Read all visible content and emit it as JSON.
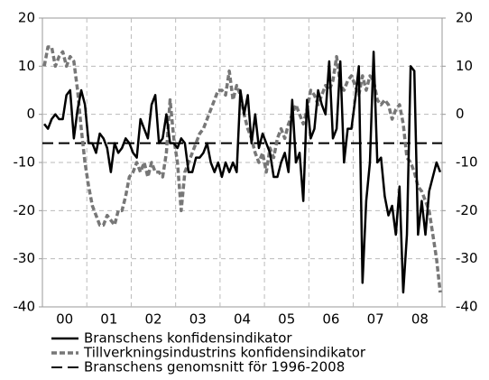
{
  "chart_data": {
    "type": "line",
    "categories": [
      null,
      null,
      null,
      null,
      null,
      null,
      "00",
      null,
      null,
      null,
      null,
      null,
      null,
      null,
      null,
      null,
      null,
      null,
      "01",
      null,
      null,
      null,
      null,
      null,
      null,
      null,
      null,
      null,
      null,
      null,
      "02",
      null,
      null,
      null,
      null,
      null,
      null,
      null,
      null,
      null,
      null,
      null,
      "03",
      null,
      null,
      null,
      null,
      null,
      null,
      null,
      null,
      null,
      null,
      null,
      "04",
      null,
      null,
      null,
      null,
      null,
      null,
      null,
      null,
      null,
      null,
      null,
      "05",
      null,
      null,
      null,
      null,
      null,
      null,
      null,
      null,
      null,
      null,
      null,
      "06",
      null,
      null,
      null,
      null,
      null,
      null,
      null,
      null,
      null,
      null,
      null,
      "07",
      null,
      null,
      null,
      null,
      null,
      null,
      null,
      null,
      null,
      null,
      null,
      "08",
      null,
      null,
      null,
      null,
      null
    ],
    "series": [
      {
        "name": "Branschens konfidensindikator",
        "color": "#000000",
        "style": "solid",
        "values": [
          -2,
          -3,
          -1,
          0,
          -1,
          -1,
          4,
          5,
          -5,
          1,
          5,
          2,
          -6,
          -6,
          -8,
          -4,
          -5,
          -7,
          -12,
          -6,
          -8,
          -7,
          -5,
          -6,
          -8,
          -9,
          -1,
          -3,
          -5,
          2,
          4,
          -6,
          -5,
          0,
          -6,
          -6,
          -7,
          -5,
          -6,
          -12,
          -12,
          -9,
          -9,
          -8,
          -6,
          -10,
          -12,
          -10,
          -13,
          -10,
          -12,
          -10,
          -12,
          5,
          0,
          4,
          -6,
          0,
          -7,
          -4,
          -6,
          -8,
          -13,
          -13,
          -10,
          -8,
          -12,
          3,
          -10,
          -8,
          -18,
          3,
          -5,
          -3,
          5,
          2,
          0,
          11,
          -5,
          -3,
          11,
          -10,
          -3,
          -3,
          3,
          10,
          -35,
          -18,
          -10,
          13,
          -10,
          -9,
          -17,
          -21,
          -19,
          -25,
          -15,
          -37,
          -25,
          10,
          9,
          -25,
          -18,
          -25,
          -16,
          -13,
          -10,
          -12
        ]
      },
      {
        "name": "Tillverkningsindustrins konfidensindikator",
        "color": "#777777",
        "style": "dashed",
        "values": [
          10,
          14,
          14,
          10,
          12,
          13,
          10,
          12,
          11,
          5,
          -3,
          -10,
          -15,
          -19,
          -21,
          -23,
          -23,
          -21,
          -22,
          -23,
          -20,
          -20,
          -17,
          -13,
          -12,
          -10,
          -12,
          -10,
          -13,
          -10,
          -12,
          -12,
          -13,
          -8,
          3,
          -5,
          -10,
          -20,
          -12,
          -10,
          -8,
          -6,
          -4,
          -3,
          -1,
          1,
          3,
          5,
          5,
          4,
          9,
          3,
          6,
          4,
          0,
          -3,
          -5,
          -8,
          -10,
          -8,
          -12,
          -7,
          -9,
          -5,
          -3,
          -5,
          -2,
          0,
          2,
          0,
          -2,
          1,
          5,
          4,
          2,
          4,
          6,
          5,
          7,
          12,
          6,
          5,
          7,
          8,
          6,
          4,
          8,
          5,
          8,
          7,
          3,
          2,
          3,
          2,
          -1,
          1,
          2,
          -2,
          -9,
          -10,
          -12,
          -15,
          -16,
          -18,
          -20,
          -25,
          -30,
          -37
        ]
      }
    ],
    "reference_line": {
      "name": "Branschens genomsnitt för 1996-2008",
      "value": -6,
      "color": "#000000"
    },
    "ylim": [
      -40,
      20
    ],
    "yticks": [
      -40,
      -30,
      -20,
      -10,
      0,
      10,
      20
    ],
    "y2lim": [
      -40,
      20
    ],
    "y2ticks": [
      -40,
      -30,
      -20,
      -10,
      0,
      10,
      20
    ],
    "grid": true
  }
}
